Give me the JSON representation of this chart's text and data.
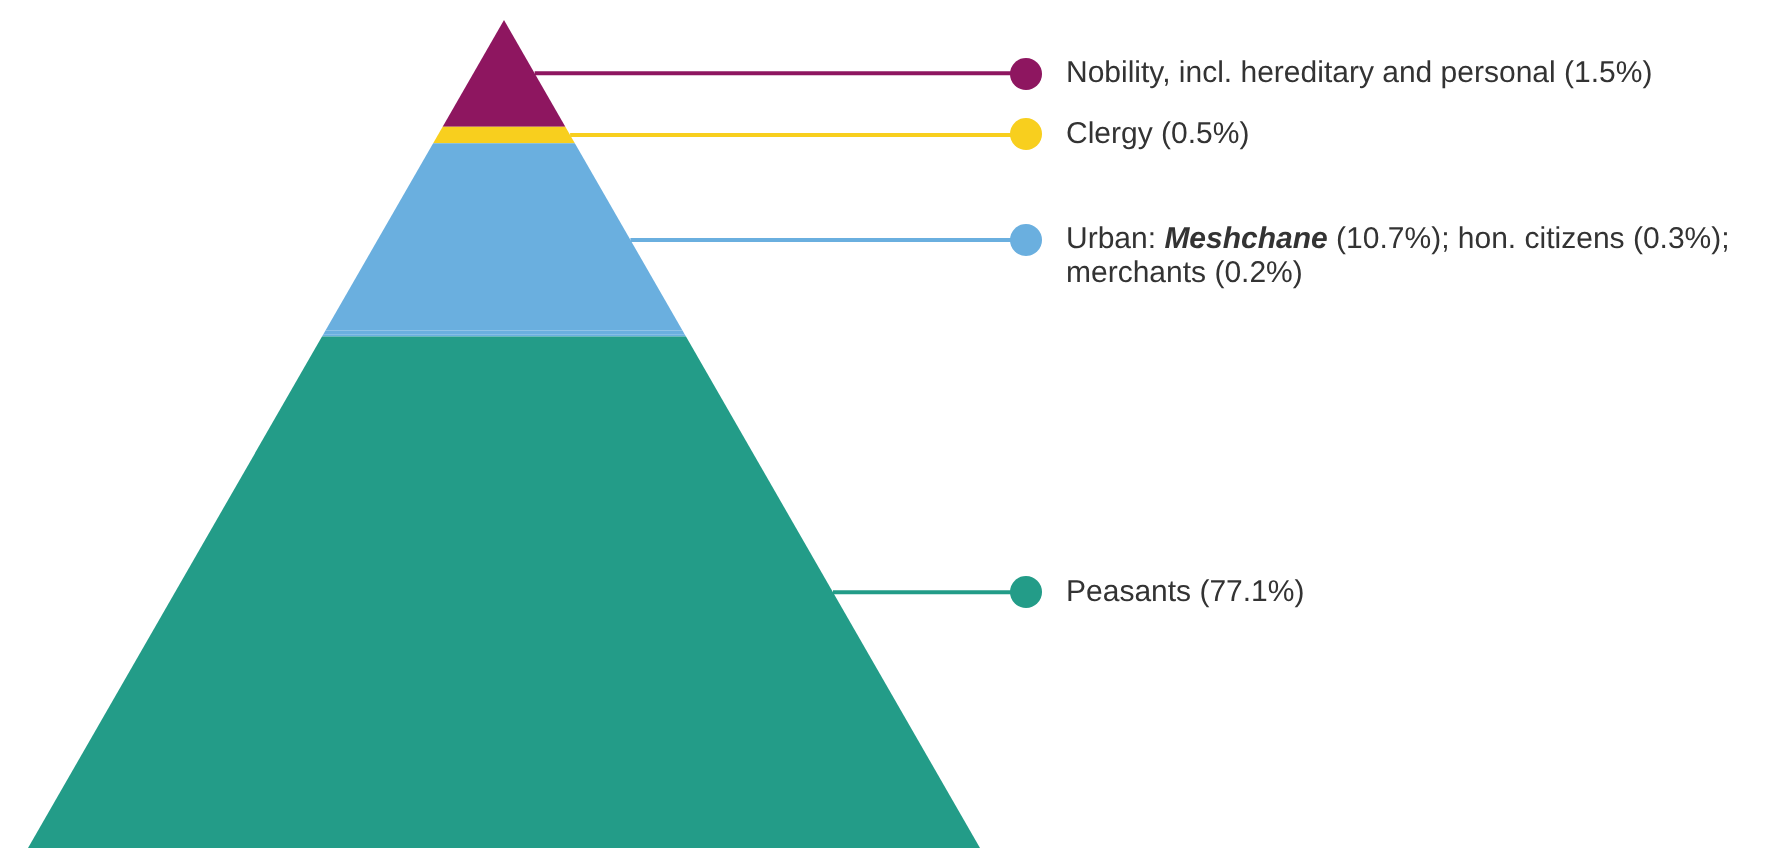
{
  "chart_data": {
    "type": "other",
    "categories": [
      "Nobility, incl. hereditary and personal",
      "Clergy",
      "Urban: Meshchane",
      "hon. citizens",
      "merchants",
      "Peasants"
    ],
    "values": [
      1.5,
      0.5,
      10.7,
      0.3,
      0.2,
      77.1
    ],
    "value_labels": [
      "(1.5%)",
      "(0.5%)",
      "(10.7%);",
      "(0.3%);",
      "(0.2%)",
      "(77.1%)"
    ],
    "colors": [
      "#8e1660",
      "#f8cf1e",
      "#6aafdf",
      "#6aafdf",
      "#6aafdf",
      "#239c88"
    ]
  }
}
